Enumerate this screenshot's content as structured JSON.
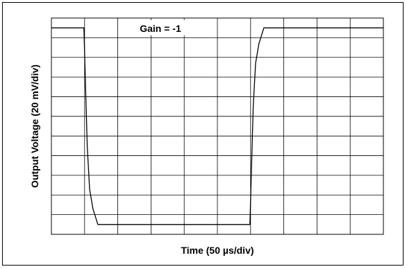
{
  "chart_data": {
    "type": "line",
    "title": "Gain = -1",
    "xlabel": "Time (50 µs/div)",
    "ylabel": "Output Voltage (20 mV/div)",
    "x_divisions": 10,
    "y_divisions": 11,
    "xlim": [
      0,
      10
    ],
    "ylim": [
      0,
      11
    ],
    "grid": true,
    "line_color": "#000000",
    "series": [
      {
        "x": [
          0,
          0.98,
          1.02,
          1.08,
          1.15,
          1.25,
          1.4,
          5.98,
          6.02,
          6.08,
          6.15,
          6.25,
          6.4,
          10
        ],
        "y": [
          10.5,
          10.5,
          8.0,
          4.5,
          2.3,
          1.3,
          0.5,
          0.5,
          3.0,
          6.5,
          8.7,
          9.7,
          10.5,
          10.5
        ]
      }
    ]
  }
}
